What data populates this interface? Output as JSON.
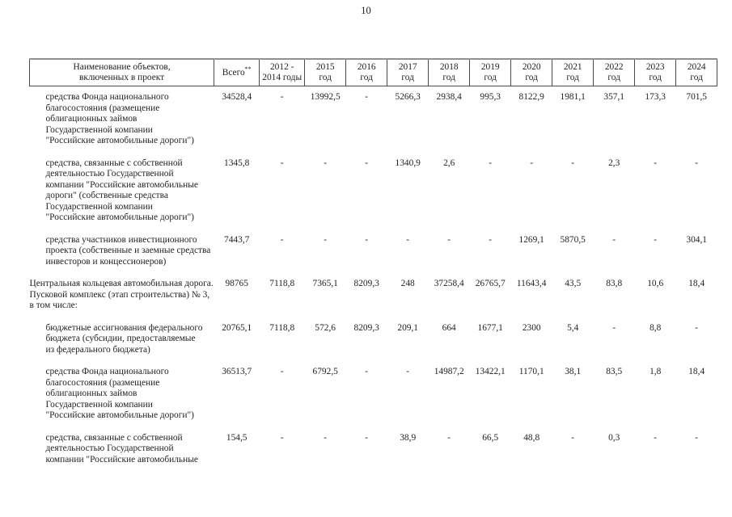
{
  "page_number": "10",
  "table": {
    "columns": [
      {
        "id": "name",
        "lines": [
          "Наименование объектов,",
          "включенных в проект"
        ]
      },
      {
        "id": "total",
        "lines": [
          "Всего"
        ],
        "sup": "**"
      },
      {
        "id": "y2012-2014",
        "lines": [
          "2012 -",
          "2014 годы"
        ]
      },
      {
        "id": "y2015",
        "lines": [
          "2015",
          "год"
        ]
      },
      {
        "id": "y2016",
        "lines": [
          "2016",
          "год"
        ]
      },
      {
        "id": "y2017",
        "lines": [
          "2017",
          "год"
        ]
      },
      {
        "id": "y2018",
        "lines": [
          "2018",
          "год"
        ]
      },
      {
        "id": "y2019",
        "lines": [
          "2019",
          "год"
        ]
      },
      {
        "id": "y2020",
        "lines": [
          "2020",
          "год"
        ]
      },
      {
        "id": "y2021",
        "lines": [
          "2021",
          "год"
        ]
      },
      {
        "id": "y2022",
        "lines": [
          "2022",
          "год"
        ]
      },
      {
        "id": "y2023",
        "lines": [
          "2023",
          "год"
        ]
      },
      {
        "id": "y2024",
        "lines": [
          "2024",
          "год"
        ]
      }
    ],
    "rows": [
      {
        "indent": true,
        "name_lines": [
          "средства Фонда национального",
          "благосостояния (размещение",
          "облигационных займов",
          "Государственной компании",
          "\"Российские автомобильные дороги\")"
        ],
        "values": [
          "34528,4",
          "-",
          "13992,5",
          "-",
          "5266,3",
          "2938,4",
          "995,3",
          "8122,9",
          "1981,1",
          "357,1",
          "173,3",
          "701,5"
        ]
      },
      {
        "indent": true,
        "name_lines": [
          "средства, связанные с собственной",
          "деятельностью Государственной",
          "компании \"Российские автомобильные",
          "дороги\" (собственные средства",
          "Государственной компании",
          "\"Российские автомобильные дороги\")"
        ],
        "values": [
          "1345,8",
          "-",
          "-",
          "-",
          "1340,9",
          "2,6",
          "-",
          "-",
          "-",
          "2,3",
          "-",
          "-"
        ]
      },
      {
        "indent": true,
        "name_lines": [
          "средства участников инвестиционного",
          "проекта (собственные и заемные средства",
          "инвесторов и концессионеров)"
        ],
        "values": [
          "7443,7",
          "-",
          "-",
          "-",
          "-",
          "-",
          "-",
          "1269,1",
          "5870,5",
          "-",
          "-",
          "304,1"
        ]
      },
      {
        "indent": false,
        "name_lines": [
          "Центральная кольцевая автомобильная дорога.",
          "Пусковой комплекс (этап строительства) № 3,",
          "в том числе:"
        ],
        "values": [
          "98765",
          "7118,8",
          "7365,1",
          "8209,3",
          "248",
          "37258,4",
          "26765,7",
          "11643,4",
          "43,5",
          "83,8",
          "10,6",
          "18,4"
        ]
      },
      {
        "indent": true,
        "name_lines": [
          "бюджетные ассигнования федерального",
          "бюджета (субсидии, предоставляемые",
          "из федерального бюджета)"
        ],
        "values": [
          "20765,1",
          "7118,8",
          "572,6",
          "8209,3",
          "209,1",
          "664",
          "1677,1",
          "2300",
          "5,4",
          "-",
          "8,8",
          "-"
        ]
      },
      {
        "indent": true,
        "name_lines": [
          "средства Фонда национального",
          "благосостояния (размещение",
          "облигационных займов",
          "Государственной компании",
          "\"Российские автомобильные дороги\")"
        ],
        "values": [
          "36513,7",
          "-",
          "6792,5",
          "-",
          "-",
          "14987,2",
          "13422,1",
          "1170,1",
          "38,1",
          "83,5",
          "1,8",
          "18,4"
        ]
      },
      {
        "indent": true,
        "name_lines": [
          "средства, связанные с собственной",
          "деятельностью Государственной",
          "компании \"Российские автомобильные"
        ],
        "values": [
          "154,5",
          "-",
          "-",
          "-",
          "38,9",
          "-",
          "66,5",
          "48,8",
          "-",
          "0,3",
          "-",
          "-"
        ]
      }
    ]
  }
}
